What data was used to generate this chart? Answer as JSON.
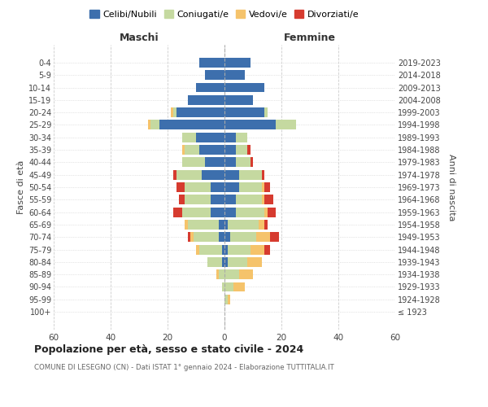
{
  "age_groups": [
    "100+",
    "95-99",
    "90-94",
    "85-89",
    "80-84",
    "75-79",
    "70-74",
    "65-69",
    "60-64",
    "55-59",
    "50-54",
    "45-49",
    "40-44",
    "35-39",
    "30-34",
    "25-29",
    "20-24",
    "15-19",
    "10-14",
    "5-9",
    "0-4"
  ],
  "birth_years": [
    "≤ 1923",
    "1924-1928",
    "1929-1933",
    "1934-1938",
    "1939-1943",
    "1944-1948",
    "1949-1953",
    "1954-1958",
    "1959-1963",
    "1964-1968",
    "1969-1973",
    "1974-1978",
    "1979-1983",
    "1984-1988",
    "1989-1993",
    "1994-1998",
    "1999-2003",
    "2004-2008",
    "2009-2013",
    "2014-2018",
    "2019-2023"
  ],
  "maschi": {
    "celibi": [
      0,
      0,
      0,
      0,
      1,
      1,
      2,
      2,
      5,
      5,
      5,
      8,
      7,
      9,
      10,
      23,
      17,
      13,
      10,
      7,
      9
    ],
    "coniugati": [
      0,
      0,
      1,
      2,
      5,
      8,
      9,
      11,
      10,
      9,
      9,
      9,
      8,
      5,
      5,
      3,
      1,
      0,
      0,
      0,
      0
    ],
    "vedovi": [
      0,
      0,
      0,
      1,
      0,
      1,
      1,
      1,
      0,
      0,
      0,
      0,
      0,
      1,
      0,
      1,
      1,
      0,
      0,
      0,
      0
    ],
    "divorziati": [
      0,
      0,
      0,
      0,
      0,
      0,
      1,
      0,
      3,
      2,
      3,
      1,
      0,
      0,
      0,
      0,
      0,
      0,
      0,
      0,
      0
    ]
  },
  "femmine": {
    "nubili": [
      0,
      0,
      0,
      0,
      1,
      1,
      2,
      1,
      4,
      4,
      5,
      5,
      4,
      4,
      4,
      18,
      14,
      10,
      14,
      7,
      9
    ],
    "coniugate": [
      0,
      1,
      3,
      5,
      7,
      8,
      9,
      11,
      10,
      9,
      8,
      8,
      5,
      4,
      4,
      7,
      1,
      0,
      0,
      0,
      0
    ],
    "vedove": [
      0,
      1,
      4,
      5,
      5,
      5,
      5,
      2,
      1,
      1,
      1,
      0,
      0,
      0,
      0,
      0,
      0,
      0,
      0,
      0,
      0
    ],
    "divorziate": [
      0,
      0,
      0,
      0,
      0,
      2,
      3,
      1,
      3,
      3,
      2,
      1,
      1,
      1,
      0,
      0,
      0,
      0,
      0,
      0,
      0
    ]
  },
  "colors": {
    "celibi": "#3d6fad",
    "coniugati": "#c5d9a0",
    "vedovi": "#f5c36b",
    "divorziati": "#d63b2f"
  },
  "title": "Popolazione per età, sesso e stato civile - 2024",
  "subtitle": "COMUNE DI LESEGNO (CN) - Dati ISTAT 1° gennaio 2024 - Elaborazione TUTTITALIA.IT",
  "ylabel_left": "Fasce di età",
  "ylabel_right": "Anni di nascita",
  "xlabel_maschi": "Maschi",
  "xlabel_femmine": "Femmine",
  "xlim": 60,
  "background_color": "#ffffff",
  "legend_labels": [
    "Celibi/Nubili",
    "Coniugati/e",
    "Vedovi/e",
    "Divorziati/e"
  ]
}
